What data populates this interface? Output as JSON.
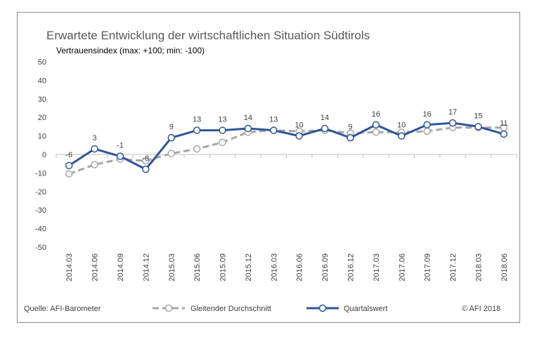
{
  "chart_data": {
    "type": "line",
    "title": "Erwartete Entwicklung der wirtschaftlichen Situation Südtirols",
    "subtitle": "Vertrauensindex (max: +100; min: -100)",
    "ylim": [
      -50,
      50
    ],
    "yticks": [
      50,
      40,
      30,
      20,
      10,
      0,
      -10,
      -20,
      -30,
      -40,
      -50
    ],
    "categories": [
      "2014.03",
      "2014.06",
      "2014.09",
      "2014.12",
      "2015.03",
      "2015.06",
      "2015.09",
      "2015.12",
      "2016.03",
      "2016.06",
      "2016.09",
      "2016.12",
      "2017.03",
      "2017.06",
      "2017.09",
      "2017.12",
      "2018.03",
      "2018.06"
    ],
    "series": [
      {
        "name": "Gleitender Durchschnitt",
        "color": "#a6a6a6",
        "style": "dashed",
        "values": [
          -10.5,
          -5.5,
          -2.5,
          -3.5,
          0.5,
          3,
          6.5,
          12,
          13,
          12.5,
          13,
          11.5,
          12,
          12,
          12.5,
          14.5,
          14.5,
          14.5
        ]
      },
      {
        "name": "Quartalswert",
        "color": "#2e5597",
        "style": "solid",
        "values": [
          -6,
          3,
          -1,
          -8,
          9,
          13,
          13,
          14,
          13,
          10,
          14,
          9,
          16,
          10,
          16,
          17,
          15,
          11
        ],
        "labels": [
          "-6",
          "3",
          "-1",
          "-8",
          "9",
          "13",
          "13",
          "14",
          "13",
          "10",
          "14",
          "9",
          "16",
          "10",
          "16",
          "17",
          "15",
          "11"
        ]
      }
    ],
    "legend_position": "bottom",
    "grid": false
  },
  "footer": {
    "source": "Quelle: AFI-Barometer",
    "copyright": "© AFI 2018"
  }
}
